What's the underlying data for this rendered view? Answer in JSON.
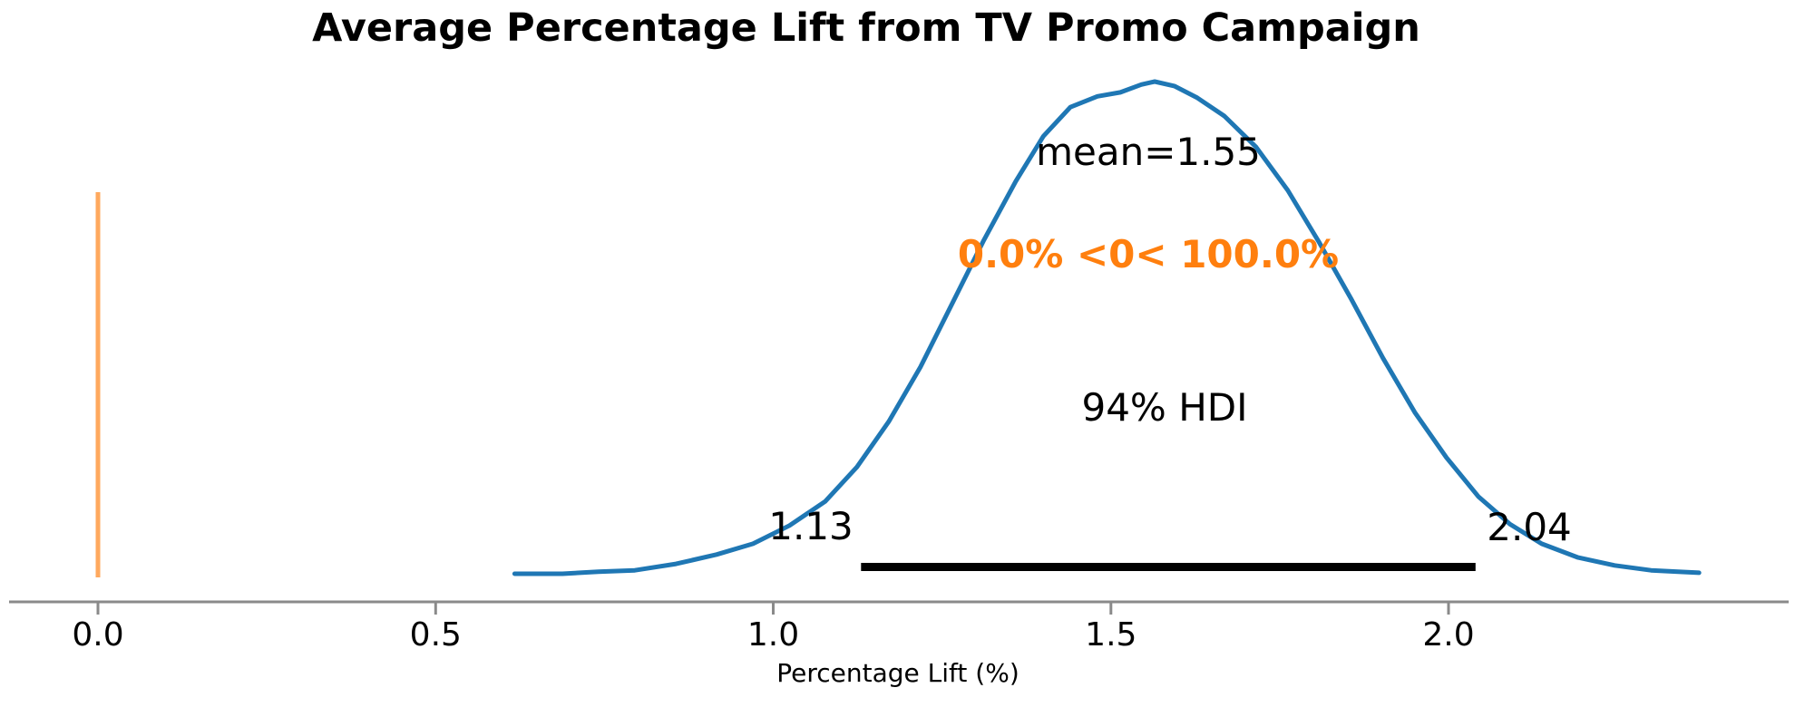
{
  "figure": {
    "title": "Average Percentage Lift from TV Promo Campaign",
    "xlabel": "Percentage Lift (%)"
  },
  "annotations": {
    "mean_label": "mean=1.55",
    "prob_label": "0.0% <0< 100.0%",
    "hdi_label": "94% HDI",
    "hdi_lower": "1.13",
    "hdi_upper": "2.04"
  },
  "colors": {
    "kde_line": "#1f77b4",
    "ref_line": "#ffa95e",
    "prob_text": "#ff7f0e",
    "hdi_bar": "#000000",
    "axis_spine": "#8a8a8a",
    "text": "#000000"
  },
  "chart_data": {
    "type": "area",
    "subtype": "kde-posterior-density",
    "title": "Average Percentage Lift from TV Promo Campaign",
    "xlabel": "Percentage Lift (%)",
    "ylabel": "",
    "legend": "none",
    "grid": false,
    "x_range_shown": [
      -0.13,
      2.51
    ],
    "kde_support": [
      0.62,
      2.37
    ],
    "mean": 1.55,
    "hdi_prob": 0.94,
    "hdi_interval": [
      1.13,
      2.04
    ],
    "ref_value": 0.0,
    "prob_below_ref": "0.0%",
    "prob_above_ref": "100.0%",
    "x_ticks": [
      0.0,
      0.5,
      1.0,
      1.5,
      2.0
    ],
    "x_tick_labels": [
      "0.0",
      "0.5",
      "1.0",
      "1.5",
      "2.0"
    ],
    "kde": {
      "x": [
        0.617,
        0.688,
        0.741,
        0.795,
        0.856,
        0.916,
        0.97,
        1.024,
        1.077,
        1.124,
        1.171,
        1.218,
        1.265,
        1.312,
        1.359,
        1.4,
        1.44,
        1.48,
        1.514,
        1.545,
        1.565,
        1.594,
        1.628,
        1.668,
        1.715,
        1.762,
        1.809,
        1.856,
        1.903,
        1.95,
        1.997,
        2.044,
        2.091,
        2.138,
        2.192,
        2.246,
        2.3,
        2.34,
        2.371
      ],
      "density": [
        0.0,
        0.0,
        0.004,
        0.007,
        0.02,
        0.039,
        0.061,
        0.098,
        0.147,
        0.217,
        0.309,
        0.42,
        0.549,
        0.678,
        0.797,
        0.889,
        0.948,
        0.97,
        0.978,
        0.994,
        1.0,
        0.991,
        0.967,
        0.93,
        0.867,
        0.779,
        0.672,
        0.558,
        0.438,
        0.328,
        0.236,
        0.157,
        0.101,
        0.061,
        0.033,
        0.017,
        0.007,
        0.004,
        0.002
      ]
    }
  }
}
